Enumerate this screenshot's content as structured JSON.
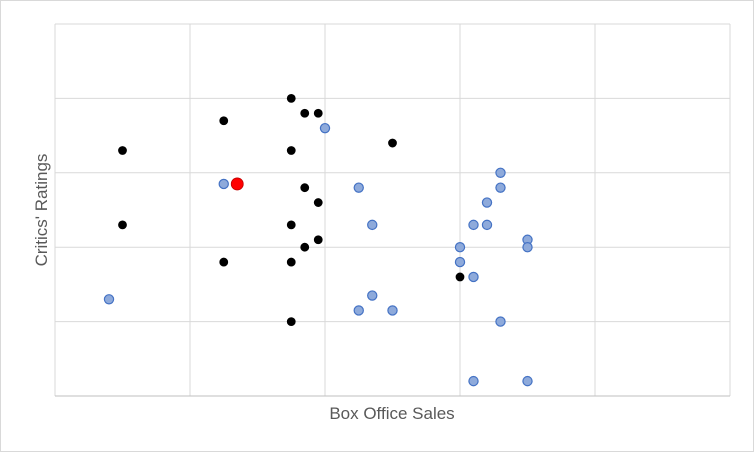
{
  "chart_data": {
    "type": "scatter",
    "title": "",
    "xlabel": "Box Office Sales",
    "ylabel": "Critics' Ratings",
    "xlim": [
      0,
      10
    ],
    "ylim": [
      0,
      10
    ],
    "grid": true,
    "tick_labels_shown": false,
    "legend": "none",
    "series": [
      {
        "name": "black",
        "color": "#000000",
        "stroke": "#000000",
        "points": [
          [
            1.0,
            6.6
          ],
          [
            1.0,
            4.6
          ],
          [
            2.5,
            7.4
          ],
          [
            2.5,
            3.6
          ],
          [
            3.5,
            8.0
          ],
          [
            3.5,
            6.6
          ],
          [
            3.5,
            4.6
          ],
          [
            3.5,
            3.6
          ],
          [
            3.5,
            2.0
          ],
          [
            3.7,
            7.6
          ],
          [
            3.7,
            5.6
          ],
          [
            3.7,
            4.0
          ],
          [
            3.9,
            7.6
          ],
          [
            3.9,
            5.2
          ],
          [
            3.9,
            4.2
          ],
          [
            4.5,
            5.6
          ],
          [
            5.0,
            6.8
          ],
          [
            6.0,
            3.2
          ],
          [
            6.6,
            5.6
          ]
        ]
      },
      {
        "name": "blue",
        "color": "#8eaadb",
        "stroke": "#4472c4",
        "points": [
          [
            0.8,
            2.6
          ],
          [
            2.5,
            5.7
          ],
          [
            4.0,
            7.2
          ],
          [
            4.5,
            5.6
          ],
          [
            4.7,
            4.6
          ],
          [
            4.5,
            2.3
          ],
          [
            4.7,
            2.7
          ],
          [
            5.0,
            2.3
          ],
          [
            6.0,
            4.0
          ],
          [
            6.0,
            3.6
          ],
          [
            6.2,
            4.6
          ],
          [
            6.2,
            3.2
          ],
          [
            6.2,
            0.4
          ],
          [
            6.4,
            5.2
          ],
          [
            6.4,
            4.6
          ],
          [
            6.6,
            6.0
          ],
          [
            6.6,
            5.6
          ],
          [
            6.6,
            2.0
          ],
          [
            7.0,
            4.2
          ],
          [
            7.0,
            4.0
          ],
          [
            7.0,
            0.4
          ]
        ]
      },
      {
        "name": "highlight",
        "color": "#ff0000",
        "stroke": "#c00000",
        "points": [
          [
            2.7,
            5.7
          ]
        ]
      }
    ]
  }
}
